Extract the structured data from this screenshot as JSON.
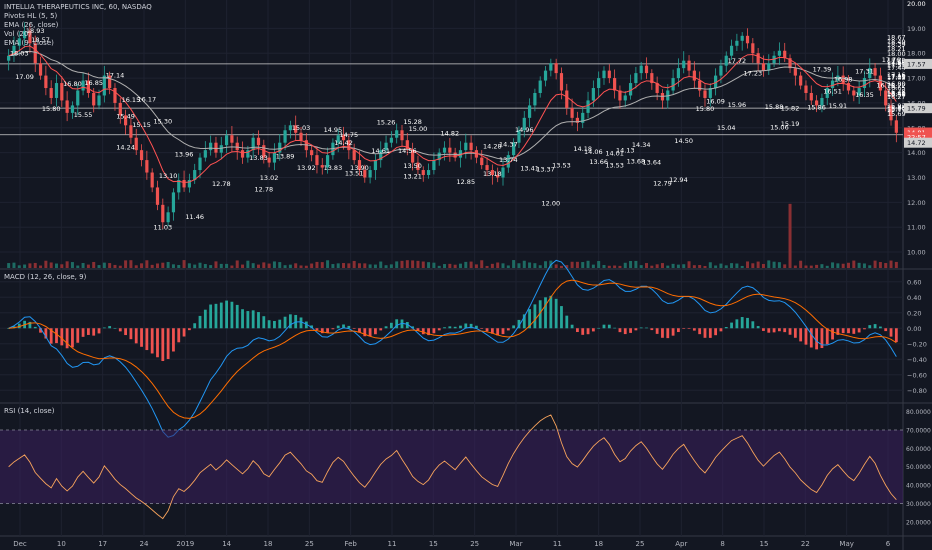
{
  "header": {
    "title": "INTELLIA THERAPEUTICS INC, 60, NASDAQ",
    "indicators": [
      "Pivots HL (5, 5)",
      "EMA (26, close)",
      "Vol (20)",
      "EMA (9, close)"
    ]
  },
  "macd_label": "MACD (12, 26, close, 9)",
  "rsi_label": "RSI (14, close)",
  "colors": {
    "background": "#131722",
    "up": "#26a69a",
    "down": "#ef5350",
    "ema26": "#b0b0b0",
    "ema9": "#ff5252",
    "macd": "#2196f3",
    "signal": "#ff6d00",
    "rsi": "#f7a35c",
    "rsi_band": "#3a1f5d",
    "hline": "#cfcfcf",
    "price_tag": "#ef5350"
  },
  "chart_data": [
    {
      "type": "line",
      "name": "price",
      "x_ticks": [
        "Dec",
        "10",
        "17",
        "24",
        "2019",
        "14",
        "18",
        "25",
        "Feb",
        "11",
        "15",
        "25",
        "Mar",
        "11",
        "18",
        "25",
        "Apr",
        "8",
        "15",
        "22",
        "May",
        "6"
      ],
      "y_axis": [
        19.0,
        18.0,
        17.0,
        16.0,
        15.0,
        14.0,
        13.0,
        12.0,
        11.0,
        10.0
      ],
      "y_ticks": [
        "19.00",
        "18.00",
        "17.00",
        "16.00",
        "15.00",
        "14.00",
        "13.00",
        "12.00",
        "11.00",
        "10.00"
      ],
      "ylim": [
        9.6,
        19.9
      ],
      "price_tags": [
        {
          "text": "20.00",
          "y": 20.0,
          "bg": "none"
        },
        {
          "text": "17.57",
          "y": 17.57,
          "bg": "#cfcfcf"
        },
        {
          "text": "15.79",
          "y": 15.79,
          "bg": "#cfcfcf"
        },
        {
          "text": "14.81",
          "y": 14.81,
          "bg": "#ef5350"
        },
        {
          "text": "22:57",
          "y": 14.62,
          "bg": "#ef5350"
        },
        {
          "text": "14.72",
          "y": 14.4,
          "bg": "#cfcfcf"
        }
      ],
      "hlines": [
        17.57,
        15.79,
        14.72
      ],
      "close": [
        17.9,
        18.3,
        18.6,
        18.9,
        18.4,
        17.6,
        17.1,
        16.6,
        16.2,
        16.8,
        16.1,
        15.6,
        15.9,
        16.5,
        16.9,
        16.4,
        15.9,
        16.3,
        17.1,
        16.6,
        16.0,
        15.5,
        15.1,
        14.6,
        14.1,
        13.7,
        13.2,
        12.6,
        11.9,
        11.2,
        11.6,
        12.4,
        12.9,
        12.6,
        12.9,
        13.3,
        13.8,
        14.1,
        14.4,
        14.0,
        14.3,
        14.7,
        14.4,
        14.1,
        13.8,
        14.1,
        14.6,
        14.3,
        13.8,
        13.6,
        14.0,
        14.4,
        14.9,
        15.1,
        14.8,
        14.5,
        14.1,
        13.9,
        13.5,
        13.4,
        13.9,
        14.4,
        14.7,
        14.5,
        14.1,
        13.7,
        13.3,
        13.0,
        13.3,
        13.7,
        14.1,
        14.4,
        14.6,
        14.9,
        14.5,
        14.1,
        13.6,
        13.3,
        13.1,
        13.3,
        13.7,
        14.0,
        14.2,
        14.0,
        13.8,
        14.1,
        14.4,
        14.1,
        13.8,
        13.5,
        13.3,
        13.1,
        13.0,
        13.4,
        13.9,
        14.4,
        14.9,
        15.4,
        15.9,
        16.4,
        16.9,
        17.3,
        17.6,
        17.2,
        16.5,
        15.8,
        15.4,
        15.2,
        15.6,
        16.1,
        16.6,
        17.0,
        17.3,
        17.0,
        16.5,
        16.1,
        16.3,
        16.8,
        17.2,
        17.5,
        17.2,
        16.8,
        16.4,
        16.1,
        16.5,
        17.0,
        17.4,
        17.7,
        17.3,
        16.9,
        16.5,
        16.2,
        16.6,
        17.1,
        17.5,
        17.9,
        18.3,
        18.5,
        18.7,
        18.4,
        18.0,
        17.6,
        17.3,
        17.6,
        17.9,
        18.1,
        17.8,
        17.4,
        17.1,
        16.7,
        16.4,
        16.1,
        15.9,
        16.2,
        16.6,
        16.9,
        17.1,
        16.8,
        16.5,
        16.3,
        16.6,
        17.0,
        17.4,
        17.1,
        16.5,
        15.9,
        15.3,
        14.8
      ]
    },
    {
      "type": "bar",
      "name": "macd",
      "y_ticks": [
        "0.60",
        "0.40",
        "0.20",
        "0.00",
        "−0.20",
        "−0.40",
        "−0.60",
        "−0.80"
      ],
      "y_axis": [
        0.6,
        0.4,
        0.2,
        0.0,
        -0.2,
        -0.4,
        -0.6,
        -0.8
      ],
      "ylim": [
        -0.9,
        0.7
      ]
    },
    {
      "type": "line",
      "name": "rsi",
      "y_ticks": [
        "80.0000",
        "70.0000",
        "60.0000",
        "50.0000",
        "40.0000",
        "30.0000",
        "20.0000"
      ],
      "y_axis": [
        80,
        70,
        60,
        50,
        40,
        30,
        20
      ],
      "ylim": [
        15,
        82
      ],
      "bands": [
        70,
        30
      ]
    }
  ],
  "pivot_labels": [
    {
      "t": "18.03",
      "i": 2,
      "v": 18.03
    },
    {
      "t": "18.93",
      "i": 5,
      "v": 18.93
    },
    {
      "t": "18.57",
      "i": 6,
      "v": 18.57
    },
    {
      "t": "17.09",
      "i": 3,
      "v": 17.09
    },
    {
      "t": "16.80",
      "i": 12,
      "v": 16.8
    },
    {
      "t": "16.85",
      "i": 16,
      "v": 16.85
    },
    {
      "t": "17.14",
      "i": 20,
      "v": 17.14
    },
    {
      "t": "16.15",
      "i": 23,
      "v": 16.15
    },
    {
      "t": "16.17",
      "i": 26,
      "v": 16.17
    },
    {
      "t": "15.80",
      "i": 8,
      "v": 15.8
    },
    {
      "t": "15.55",
      "i": 14,
      "v": 15.55
    },
    {
      "t": "15.49",
      "i": 22,
      "v": 15.49
    },
    {
      "t": "15.30",
      "i": 29,
      "v": 15.3
    },
    {
      "t": "15.15",
      "i": 25,
      "v": 15.15
    },
    {
      "t": "14.24",
      "i": 22,
      "v": 14.24
    },
    {
      "t": "13.96",
      "i": 33,
      "v": 13.96
    },
    {
      "t": "13.10",
      "i": 30,
      "v": 13.1
    },
    {
      "t": "12.78",
      "i": 40,
      "v": 12.78
    },
    {
      "t": "11.46",
      "i": 35,
      "v": 11.46
    },
    {
      "t": "11.03",
      "i": 29,
      "v": 11.03
    },
    {
      "t": "13.83",
      "i": 47,
      "v": 13.83
    },
    {
      "t": "13.89",
      "i": 52,
      "v": 13.89
    },
    {
      "t": "13.02",
      "i": 49,
      "v": 13.02
    },
    {
      "t": "12.78",
      "i": 48,
      "v": 12.55
    },
    {
      "t": "13.92",
      "i": 56,
      "v": 13.42
    },
    {
      "t": "13.83",
      "i": 61,
      "v": 13.42
    },
    {
      "t": "13.90",
      "i": 66,
      "v": 13.42
    },
    {
      "t": "15.03",
      "i": 55,
      "v": 15.03
    },
    {
      "t": "14.95",
      "i": 61,
      "v": 14.95
    },
    {
      "t": "14.75",
      "i": 64,
      "v": 14.75
    },
    {
      "t": "14.42",
      "i": 63,
      "v": 14.42
    },
    {
      "t": "15.26",
      "i": 71,
      "v": 15.26
    },
    {
      "t": "15.28",
      "i": 76,
      "v": 15.28
    },
    {
      "t": "15.00",
      "i": 77,
      "v": 15.0
    },
    {
      "t": "14.82",
      "i": 83,
      "v": 14.82
    },
    {
      "t": "14.61",
      "i": 70,
      "v": 14.11
    },
    {
      "t": "14.56",
      "i": 75,
      "v": 14.11
    },
    {
      "t": "13.51",
      "i": 65,
      "v": 13.2
    },
    {
      "t": "13.50",
      "i": 76,
      "v": 13.5
    },
    {
      "t": "13.21",
      "i": 76,
      "v": 13.08
    },
    {
      "t": "14.28",
      "i": 91,
      "v": 14.28
    },
    {
      "t": "14.37",
      "i": 94,
      "v": 14.37
    },
    {
      "t": "14.96",
      "i": 97,
      "v": 14.96
    },
    {
      "t": "13.74",
      "i": 94,
      "v": 13.74
    },
    {
      "t": "13.18",
      "i": 91,
      "v": 13.18
    },
    {
      "t": "12.85",
      "i": 86,
      "v": 12.85
    },
    {
      "t": "13.41",
      "i": 98,
      "v": 13.41
    },
    {
      "t": "13.37",
      "i": 101,
      "v": 13.37
    },
    {
      "t": "13.53",
      "i": 104,
      "v": 13.53
    },
    {
      "t": "12.00",
      "i": 102,
      "v": 12.0
    },
    {
      "t": "14.18",
      "i": 108,
      "v": 14.18
    },
    {
      "t": "14.06",
      "i": 110,
      "v": 14.06
    },
    {
      "t": "14.01",
      "i": 114,
      "v": 14.01
    },
    {
      "t": "14.13",
      "i": 116,
      "v": 14.13
    },
    {
      "t": "14.34",
      "i": 119,
      "v": 14.34
    },
    {
      "t": "13.66",
      "i": 111,
      "v": 13.66
    },
    {
      "t": "13.53",
      "i": 114,
      "v": 13.53
    },
    {
      "t": "13.68",
      "i": 118,
      "v": 13.68
    },
    {
      "t": "13.64",
      "i": 121,
      "v": 13.64
    },
    {
      "t": "14.50",
      "i": 127,
      "v": 14.5
    },
    {
      "t": "12.79",
      "i": 123,
      "v": 12.79
    },
    {
      "t": "12.94",
      "i": 126,
      "v": 12.94
    },
    {
      "t": "15.80",
      "i": 131,
      "v": 15.8
    },
    {
      "t": "16.09",
      "i": 133,
      "v": 16.09
    },
    {
      "t": "17.72",
      "i": 137,
      "v": 17.72
    },
    {
      "t": "17.23",
      "i": 140,
      "v": 17.23
    },
    {
      "t": "15.96",
      "i": 137,
      "v": 15.96
    },
    {
      "t": "15.04",
      "i": 135,
      "v": 15.04
    },
    {
      "t": "15.88",
      "i": 144,
      "v": 15.88
    },
    {
      "t": "15.82",
      "i": 147,
      "v": 15.82
    },
    {
      "t": "15.06",
      "i": 145,
      "v": 15.06
    },
    {
      "t": "15.19",
      "i": 147,
      "v": 15.19
    },
    {
      "t": "17.39",
      "i": 153,
      "v": 17.39
    },
    {
      "t": "16.98",
      "i": 157,
      "v": 16.98
    },
    {
      "t": "17.31",
      "i": 161,
      "v": 17.31
    },
    {
      "t": "16.51",
      "i": 155,
      "v": 16.51
    },
    {
      "t": "15.86",
      "i": 152,
      "v": 15.86
    },
    {
      "t": "15.91",
      "i": 156,
      "v": 15.91
    },
    {
      "t": "16.35",
      "i": 161,
      "v": 16.35
    },
    {
      "t": "17.76",
      "i": 166,
      "v": 17.76
    },
    {
      "t": "16.75",
      "i": 165,
      "v": 16.75
    },
    {
      "t": "16.65",
      "i": 174,
      "v": 16.65
    },
    {
      "t": "16.72",
      "i": 171,
      "v": 16.72
    },
    {
      "t": "15.77",
      "i": 168,
      "v": 15.77
    },
    {
      "t": "15.92",
      "i": 174,
      "v": 15.92
    },
    {
      "t": "17.68",
      "i": 177,
      "v": 17.68
    },
    {
      "t": "17.44",
      "i": 180,
      "v": 17.44
    },
    {
      "t": "16.80",
      "i": 182,
      "v": 16.8
    },
    {
      "t": "18.49",
      "i": 184,
      "v": 18.49
    },
    {
      "t": "18.39",
      "i": 186,
      "v": 18.39
    },
    {
      "t": "18.67",
      "i": 191,
      "v": 18.67
    },
    {
      "t": "17.65",
      "i": 187,
      "v": 17.65
    },
    {
      "t": "18.00",
      "i": 190,
      "v": 18.0
    },
    {
      "t": "18.21",
      "i": 197,
      "v": 18.21
    },
    {
      "t": "17.75",
      "i": 199,
      "v": 17.75
    },
    {
      "t": "17.11",
      "i": 197,
      "v": 17.11
    },
    {
      "t": "17.16",
      "i": 201,
      "v": 17.16
    },
    {
      "t": "17.57",
      "i": 206,
      "v": 17.57
    },
    {
      "t": "16.41",
      "i": 203,
      "v": 16.41
    },
    {
      "t": "15.80",
      "i": 208,
      "v": 15.8
    },
    {
      "t": "15.85",
      "i": 211,
      "v": 15.85
    },
    {
      "t": "15.69",
      "i": 209,
      "v": 15.6
    },
    {
      "t": "16.27",
      "i": 212,
      "v": 16.27
    },
    {
      "t": "17.09",
      "i": 215,
      "v": 17.09
    },
    {
      "t": "17.05",
      "i": 218,
      "v": 17.05
    },
    {
      "t": "16.48",
      "i": 214,
      "v": 16.48
    },
    {
      "t": "16.38",
      "i": 217,
      "v": 16.38
    },
    {
      "t": "16.40",
      "i": 219,
      "v": 16.4
    },
    {
      "t": "17.54",
      "i": 222,
      "v": 17.54
    }
  ]
}
